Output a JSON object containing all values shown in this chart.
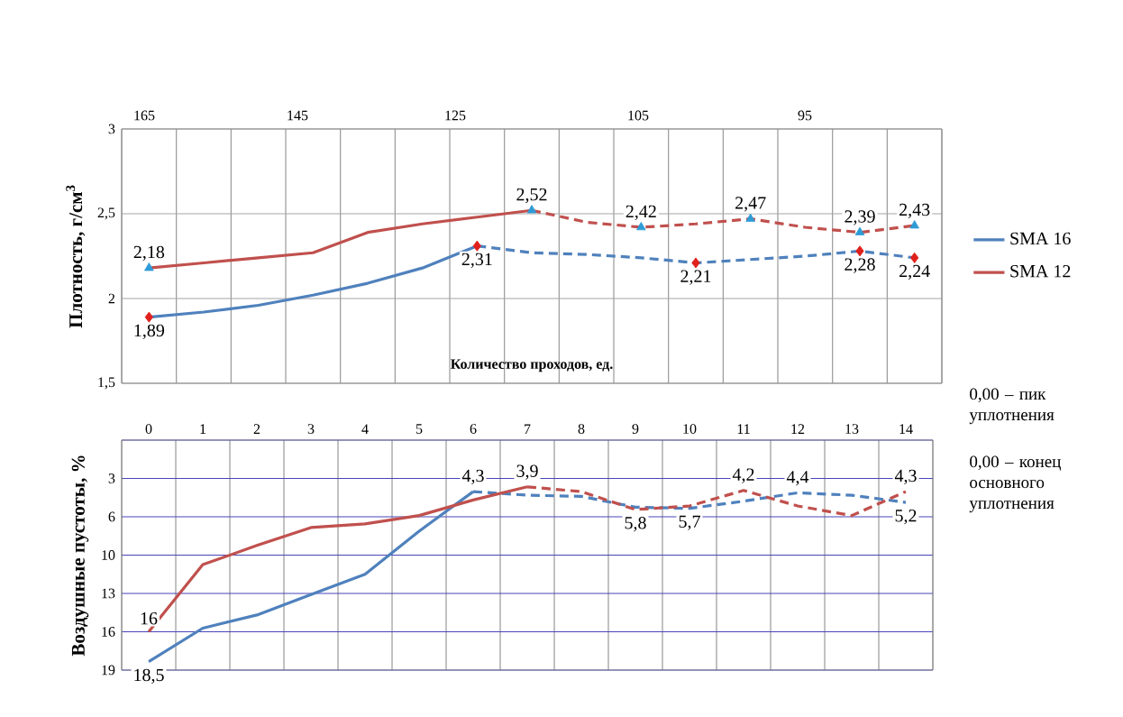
{
  "chart_data": [
    {
      "type": "line",
      "xlabel": "Количество проходов, ед.",
      "ylabel": "Плотность, г/см$^{3}$",
      "categories": [
        null,
        null,
        null,
        null,
        null,
        null,
        null,
        null,
        null,
        null,
        null,
        null,
        null,
        null,
        null
      ],
      "ylim": [
        1.5,
        3
      ],
      "yticks": [
        {
          "value": 1.5,
          "label": "1,5"
        },
        {
          "value": 2,
          "label": "2"
        },
        {
          "value": 2.5,
          "label": "2,5"
        },
        {
          "value": 3,
          "label": "3"
        }
      ],
      "grid": true,
      "legend": "right",
      "series": [
        {
          "name": "SMA 16",
          "color": "#4f81bd",
          "line_style": "solid",
          "values": [
            1.89,
            1.92,
            1.96,
            2.02,
            2.09,
            2.18,
            2.31,
            null,
            null,
            null,
            null,
            null,
            null,
            null,
            null
          ]
        },
        {
          "color": "#4f81bd",
          "line_style": "dashed",
          "values": [
            null,
            null,
            null,
            null,
            null,
            null,
            2.31,
            2.27,
            2.26,
            2.24,
            2.21,
            2.23,
            2.25,
            2.28,
            2.24
          ]
        },
        {
          "name": "SMA 12",
          "color": "#c0504d",
          "line_style": "solid",
          "values": [
            2.18,
            2.21,
            2.24,
            2.27,
            2.39,
            2.44,
            2.48,
            2.52,
            null,
            null,
            null,
            null,
            null,
            null,
            null
          ]
        },
        {
          "color": "#c0504d",
          "line_style": "dashed",
          "values": [
            null,
            null,
            null,
            null,
            null,
            null,
            null,
            2.52,
            2.45,
            2.42,
            2.44,
            2.47,
            2.42,
            2.39,
            2.43
          ]
        },
        {
          "type": "scatter",
          "marker": "diamond",
          "color": "#e0201b",
          "values": [
            1.89,
            null,
            null,
            null,
            null,
            null,
            2.31,
            null,
            null,
            null,
            2.21,
            null,
            null,
            2.28,
            2.24
          ],
          "value_labels": [
            "1,89",
            null,
            null,
            null,
            null,
            null,
            "2,31",
            null,
            null,
            null,
            "2,21",
            null,
            null,
            "2,28",
            "2,24"
          ]
        },
        {
          "type": "scatter",
          "marker": "triangle",
          "color": "#2e9bd6",
          "values": [
            2.18,
            null,
            null,
            null,
            null,
            null,
            null,
            2.52,
            null,
            2.42,
            null,
            2.47,
            null,
            2.39,
            2.43
          ],
          "value_labels": [
            "2,18",
            null,
            null,
            null,
            null,
            null,
            null,
            "2,52",
            null,
            "2,42",
            null,
            "2,47",
            null,
            "2,39",
            "2,43"
          ]
        }
      ],
      "annotations": [
        "165",
        "145",
        "125",
        "105",
        "95",
        "0,00 – пик уплотнения",
        "0,00 – конец основного уплотнения"
      ]
    },
    {
      "type": "line",
      "ylabel": "Воздушные пустоты, %",
      "categories": [
        "0",
        "1",
        "2",
        "3",
        "4",
        "5",
        "6",
        "7",
        "8",
        "9",
        "10",
        "11",
        "12",
        "13",
        "14"
      ],
      "ylim": [
        19.2,
        0
      ],
      "yticks": [
        {
          "value": 0,
          "label": null
        },
        {
          "value": 3.2,
          "label": "3"
        },
        {
          "value": 6.4,
          "label": "6"
        },
        {
          "value": 9.6,
          "label": "10"
        },
        {
          "value": 12.8,
          "label": "13"
        },
        {
          "value": 16,
          "label": "16"
        },
        {
          "value": 19.2,
          "label": "19"
        }
      ],
      "grid": true,
      "series": [
        {
          "color": "#4f81bd",
          "line_style": "solid",
          "values": [
            18.5,
            15.7,
            14.6,
            12.9,
            11.2,
            7.6,
            4.3,
            null,
            null,
            null,
            null,
            null,
            null,
            null,
            null
          ],
          "value_labels": [
            "18,5",
            null,
            null,
            null,
            null,
            null,
            "4,3",
            null,
            null,
            null,
            null,
            null,
            null,
            null,
            null
          ]
        },
        {
          "color": "#4f81bd",
          "line_style": "dashed",
          "values": [
            null,
            null,
            null,
            null,
            null,
            null,
            4.3,
            4.6,
            4.7,
            5.6,
            5.7,
            5.1,
            4.4,
            4.6,
            5.2
          ],
          "value_labels": [
            null,
            null,
            null,
            null,
            null,
            null,
            null,
            null,
            null,
            null,
            "5,7",
            null,
            "4,4",
            null,
            "5,2"
          ]
        },
        {
          "color": "#c0504d",
          "line_style": "solid",
          "values": [
            16,
            10.4,
            8.8,
            7.3,
            7.0,
            6.3,
            5.0,
            3.9,
            null,
            null,
            null,
            null,
            null,
            null,
            null
          ],
          "value_labels": [
            "16",
            null,
            null,
            null,
            null,
            null,
            null,
            "3,9",
            null,
            null,
            null,
            null,
            null,
            null,
            null
          ]
        },
        {
          "color": "#c0504d",
          "line_style": "dashed",
          "values": [
            null,
            null,
            null,
            null,
            null,
            null,
            null,
            3.9,
            4.3,
            5.8,
            5.5,
            4.2,
            5.5,
            6.3,
            4.3
          ],
          "value_labels": [
            null,
            null,
            null,
            null,
            null,
            null,
            null,
            null,
            null,
            "5,8",
            null,
            "4,2",
            null,
            null,
            "4,3"
          ]
        }
      ]
    }
  ]
}
